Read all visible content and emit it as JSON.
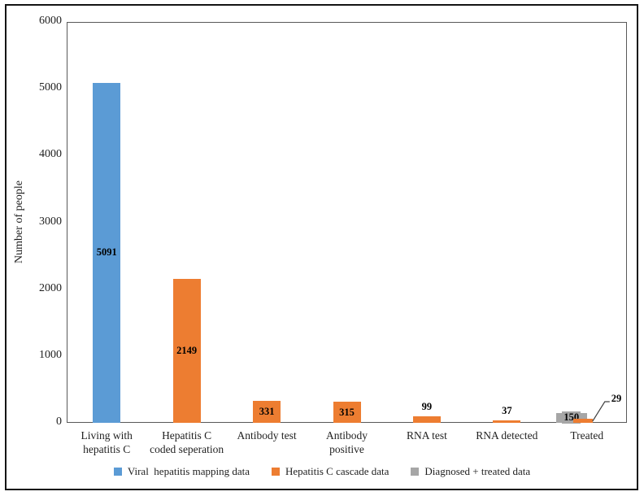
{
  "chart_data": {
    "type": "bar",
    "title": "",
    "xlabel": "",
    "ylabel": "Number of people",
    "ymax": 6000,
    "y_ticks": [
      0,
      1000,
      2000,
      3000,
      4000,
      5000,
      6000
    ],
    "grid": false,
    "legend_position": "bottom",
    "categories": [
      [
        "Living with",
        "hepatitis C"
      ],
      [
        "Hepatitis C",
        "coded seperation"
      ],
      [
        "Antibody test"
      ],
      [
        "Antibody",
        "positive"
      ],
      [
        "RNA test"
      ],
      [
        "RNA detected"
      ],
      [
        "Treated"
      ]
    ],
    "series": [
      {
        "name": "Viral  hepatitis mapping data",
        "color": "#5B9BD5",
        "values": [
          5091,
          null,
          null,
          null,
          null,
          null,
          null
        ]
      },
      {
        "name": "Hepatitis C cascade data",
        "color": "#ED7D31",
        "values": [
          null,
          2149,
          331,
          315,
          99,
          37,
          29
        ]
      },
      {
        "name": "Diagnosed + treated data",
        "color": "#A6A6A6",
        "values": [
          null,
          null,
          null,
          null,
          null,
          null,
          150
        ]
      }
    ],
    "data_labels": [
      {
        "series": 0,
        "category_index": 0,
        "text": "5091",
        "placement": "inside-center"
      },
      {
        "series": 1,
        "category_index": 1,
        "text": "2149",
        "placement": "inside-center"
      },
      {
        "series": 1,
        "category_index": 2,
        "text": "331",
        "placement": "inside-center"
      },
      {
        "series": 1,
        "category_index": 3,
        "text": "315",
        "placement": "inside-center"
      },
      {
        "series": 1,
        "category_index": 4,
        "text": "99",
        "placement": "above"
      },
      {
        "series": 1,
        "category_index": 5,
        "text": "37",
        "placement": "above"
      },
      {
        "series": 2,
        "category_index": 6,
        "text": "150",
        "placement": "inside-center"
      },
      {
        "series": 1,
        "category_index": 6,
        "text": "29",
        "placement": "callout"
      }
    ]
  }
}
